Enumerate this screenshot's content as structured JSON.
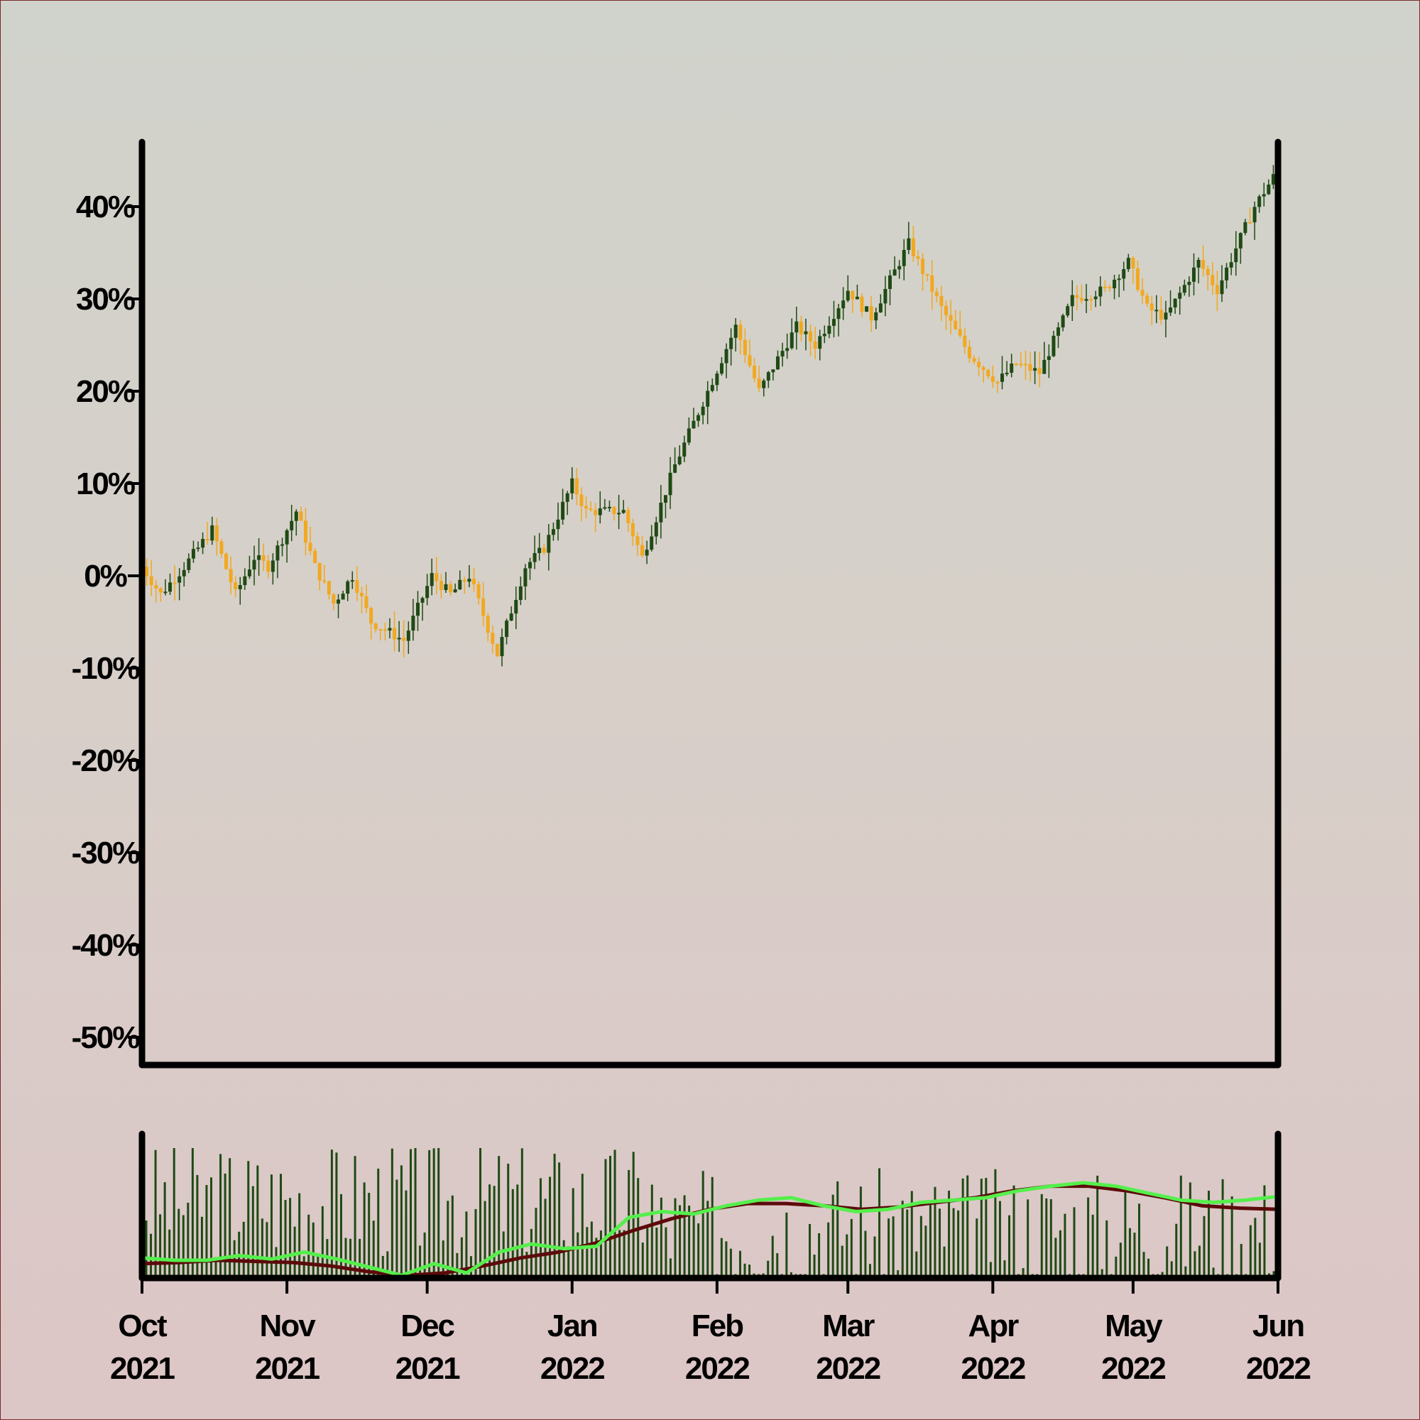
{
  "chart_data": [
    {
      "type": "candlestick",
      "title": "",
      "xlabel": "",
      "ylabel": "",
      "ylim": [
        -0.53,
        0.47
      ],
      "y_format": "percent",
      "y_ticks": [
        {
          "value": 0.4,
          "label": "40%"
        },
        {
          "value": 0.3,
          "label": "30%"
        },
        {
          "value": 0.2,
          "label": "20%"
        },
        {
          "value": 0.1,
          "label": "10%"
        },
        {
          "value": 0.0,
          "label": "0%"
        },
        {
          "value": -0.1,
          "label": "-10%"
        },
        {
          "value": -0.2,
          "label": "-20%"
        },
        {
          "value": -0.3,
          "label": "-30%"
        },
        {
          "value": -0.4,
          "label": "-40%"
        },
        {
          "value": -0.5,
          "label": "-50%"
        }
      ],
      "x_range": [
        "2021-10-01",
        "2022-06-01"
      ],
      "x_ticks": [
        {
          "date": "2021-10-01",
          "month": "Oct",
          "year": "2021"
        },
        {
          "date": "2021-11-01",
          "month": "Nov",
          "year": "2021"
        },
        {
          "date": "2021-12-01",
          "month": "Dec",
          "year": "2021"
        },
        {
          "date": "2022-01-01",
          "month": "Jan",
          "year": "2022"
        },
        {
          "date": "2022-02-01",
          "month": "Feb",
          "year": "2022"
        },
        {
          "date": "2022-03-01",
          "month": "Mar",
          "year": "2022"
        },
        {
          "date": "2022-04-01",
          "month": "Apr",
          "year": "2022"
        },
        {
          "date": "2022-05-01",
          "month": "May",
          "year": "2022"
        },
        {
          "date": "2022-06-01",
          "month": "Jun",
          "year": "2022"
        }
      ],
      "close_path": [
        {
          "date": "2021-10-01",
          "value": 0.01
        },
        {
          "date": "2021-10-05",
          "value": -0.02
        },
        {
          "date": "2021-10-10",
          "value": 0.01
        },
        {
          "date": "2021-10-16",
          "value": 0.05
        },
        {
          "date": "2021-10-21",
          "value": -0.02
        },
        {
          "date": "2021-10-25",
          "value": 0.02
        },
        {
          "date": "2021-10-28",
          "value": 0.01
        },
        {
          "date": "2021-11-03",
          "value": 0.07
        },
        {
          "date": "2021-11-07",
          "value": 0.01
        },
        {
          "date": "2021-11-11",
          "value": -0.03
        },
        {
          "date": "2021-11-15",
          "value": 0.0
        },
        {
          "date": "2021-11-19",
          "value": -0.05
        },
        {
          "date": "2021-11-26",
          "value": -0.07
        },
        {
          "date": "2021-12-02",
          "value": 0.0
        },
        {
          "date": "2021-12-06",
          "value": -0.02
        },
        {
          "date": "2021-12-10",
          "value": 0.0
        },
        {
          "date": "2021-12-16",
          "value": -0.085
        },
        {
          "date": "2021-12-22",
          "value": 0.01
        },
        {
          "date": "2021-12-26",
          "value": 0.03
        },
        {
          "date": "2022-01-01",
          "value": 0.1
        },
        {
          "date": "2022-01-04",
          "value": 0.07
        },
        {
          "date": "2022-01-12",
          "value": 0.07
        },
        {
          "date": "2022-01-16",
          "value": 0.02
        },
        {
          "date": "2022-01-23",
          "value": 0.12
        },
        {
          "date": "2022-01-30",
          "value": 0.2
        },
        {
          "date": "2022-02-05",
          "value": 0.27
        },
        {
          "date": "2022-02-10",
          "value": 0.2
        },
        {
          "date": "2022-02-18",
          "value": 0.27
        },
        {
          "date": "2022-02-22",
          "value": 0.25
        },
        {
          "date": "2022-03-01",
          "value": 0.31
        },
        {
          "date": "2022-03-06",
          "value": 0.28
        },
        {
          "date": "2022-03-14",
          "value": 0.36
        },
        {
          "date": "2022-03-21",
          "value": 0.29
        },
        {
          "date": "2022-03-27",
          "value": 0.24
        },
        {
          "date": "2022-04-02",
          "value": 0.21
        },
        {
          "date": "2022-04-06",
          "value": 0.23
        },
        {
          "date": "2022-04-11",
          "value": 0.22
        },
        {
          "date": "2022-04-18",
          "value": 0.3
        },
        {
          "date": "2022-04-25",
          "value": 0.31
        },
        {
          "date": "2022-04-30",
          "value": 0.34
        },
        {
          "date": "2022-05-04",
          "value": 0.29
        },
        {
          "date": "2022-05-08",
          "value": 0.28
        },
        {
          "date": "2022-05-15",
          "value": 0.34
        },
        {
          "date": "2022-05-19",
          "value": 0.31
        },
        {
          "date": "2022-05-27",
          "value": 0.4
        },
        {
          "date": "2022-06-01",
          "value": 0.44
        }
      ]
    },
    {
      "type": "bar",
      "title": "",
      "xlabel": "",
      "ylabel": "",
      "series": [
        {
          "role": "volume",
          "color": "#1f4a14"
        },
        {
          "role": "moving-average-fast",
          "color": "#55ef4c"
        },
        {
          "role": "moving-average-slow",
          "color": "#5c0a0a"
        }
      ],
      "ma_fast_path": [
        0.1,
        0.08,
        0.08,
        0.12,
        0.09,
        0.15,
        0.09,
        0.02,
        -0.05,
        0.05,
        -0.03,
        0.15,
        0.22,
        0.18,
        0.2,
        0.45,
        0.5,
        0.48,
        0.55,
        0.6,
        0.62,
        0.55,
        0.5,
        0.52,
        0.58,
        0.6,
        0.62,
        0.68,
        0.72,
        0.75,
        0.72,
        0.66,
        0.6,
        0.58,
        0.6,
        0.63
      ],
      "ma_slow_path": [
        0.05,
        0.06,
        0.08,
        0.07,
        0.06,
        0.03,
        -0.02,
        -0.05,
        -0.03,
        0.03,
        0.1,
        0.15,
        0.23,
        0.34,
        0.44,
        0.52,
        0.57,
        0.57,
        0.55,
        0.52,
        0.54,
        0.58,
        0.62,
        0.68,
        0.72,
        0.72,
        0.68,
        0.62,
        0.55,
        0.53,
        0.52
      ]
    }
  ],
  "colors": {
    "candle_up": "#1f4a14",
    "candle_down": "#f2a81f",
    "volume": "#1f4a14",
    "ma_fast": "#55ef4c",
    "ma_slow": "#5c0a0a",
    "axis": "#000000"
  }
}
